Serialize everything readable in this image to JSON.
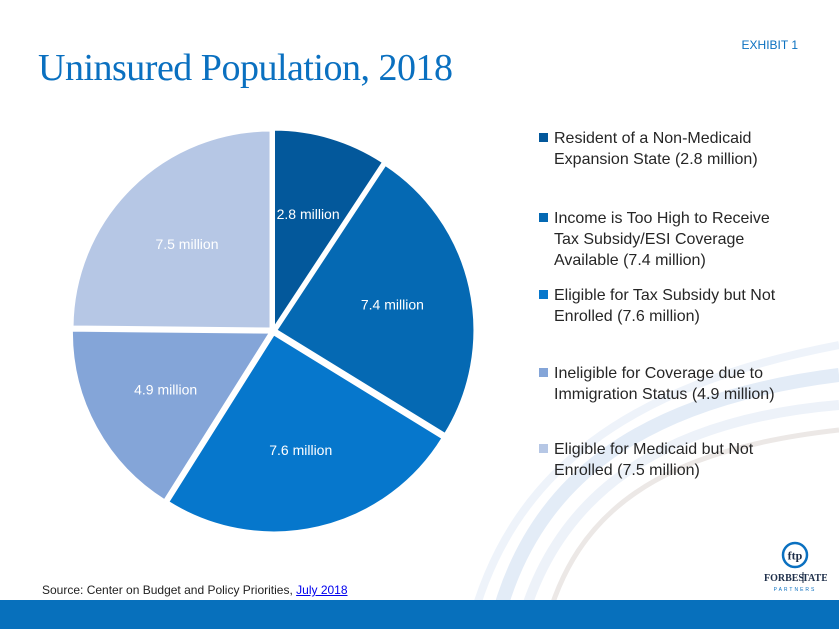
{
  "header": {
    "title": "Uninsured Population, 2018",
    "exhibit_label": "EXHIBIT 1"
  },
  "chart_data": {
    "type": "pie",
    "title": "Uninsured Population, 2018",
    "units": "million",
    "start_angle": "12 o'clock",
    "direction": "clockwise",
    "legend_placement": "right",
    "slices": [
      {
        "label": "Resident of a Non-Medicaid Expansion State (2.8 million)",
        "value": 2.8,
        "data_label": "2.8 million",
        "color": "#03589b"
      },
      {
        "label": "Income is Too High to Receive Tax Subsidy/ESI Coverage Available (7.4 million)",
        "value": 7.4,
        "data_label": "7.4 million",
        "color": "#0569b3"
      },
      {
        "label": "Eligible for Tax Subsidy but Not Enrolled (7.6 million)",
        "value": 7.6,
        "data_label": "7.6 million",
        "color": "#0677cc"
      },
      {
        "label": "Ineligible for Coverage due to Immigration Status (4.9 million)",
        "value": 4.9,
        "data_label": "4.9 million",
        "color": "#84a5d8"
      },
      {
        "label": "Eligible for Medicaid but Not Enrolled (7.5 million)",
        "value": 7.5,
        "data_label": "7.5 million",
        "color": "#b6c7e5"
      }
    ]
  },
  "legend": {
    "items": [
      {
        "lines": [
          "Resident of a Non-Medicaid",
          "Expansion State (2.8 million)"
        ],
        "color": "#03589b"
      },
      {
        "lines": [
          "Income is Too High to Receive",
          "Tax Subsidy/ESI Coverage",
          "Available (7.4 million)"
        ],
        "color": "#0569b3"
      },
      {
        "lines": [
          "Eligible for Tax Subsidy but Not",
          "Enrolled (7.6 million)"
        ],
        "color": "#0677cc"
      },
      {
        "lines": [
          "Ineligible for Coverage due to",
          "Immigration Status (4.9 million)"
        ],
        "color": "#84a5d8"
      },
      {
        "lines": [
          "Eligible for Medicaid but Not",
          "Enrolled (7.5 million)"
        ],
        "color": "#b6c7e5"
      }
    ]
  },
  "footer": {
    "source_prefix": "Source: Center on Budget and Policy Priorities, ",
    "source_link": "July 2018",
    "logo_monogram": "ftp",
    "logo_name_left": "FORBES",
    "logo_name_right": "TATE",
    "logo_sub": "PARTNERS"
  },
  "colors": {
    "brand_blue": "#0a70c0",
    "footer_bar": "#0770bc"
  }
}
